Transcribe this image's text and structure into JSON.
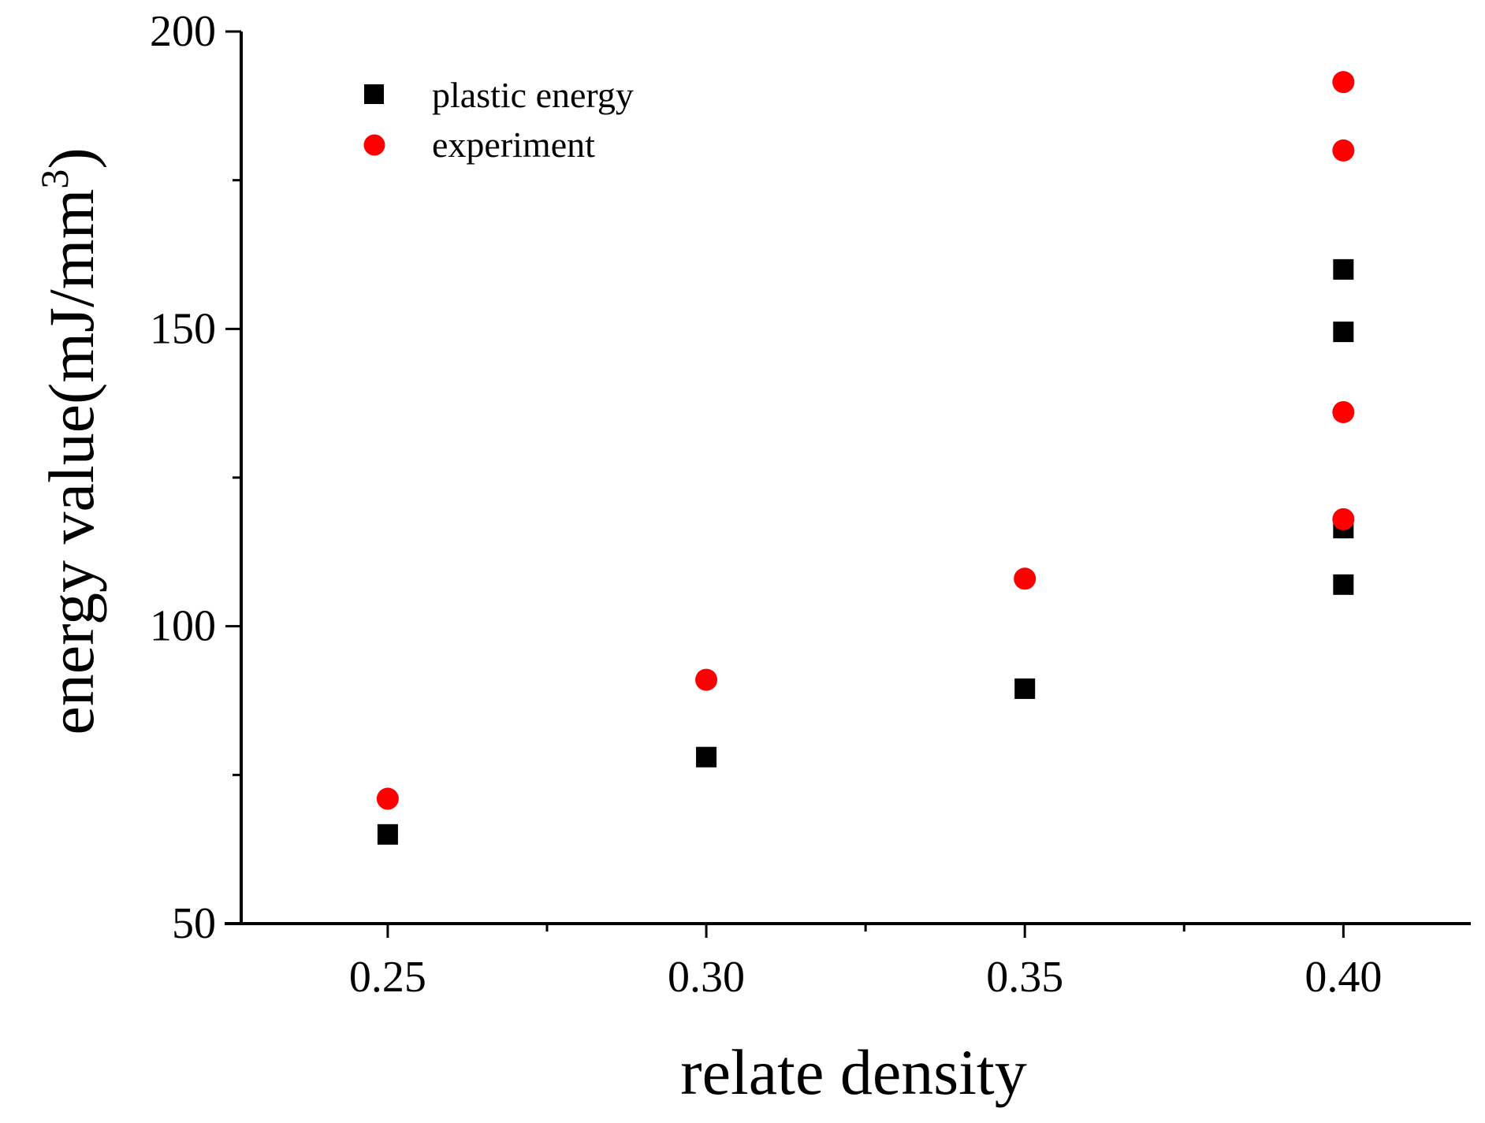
{
  "chart_data": {
    "type": "scatter",
    "title": "",
    "xlabel": "relate density",
    "ylabel": "energy value(mJ/mm",
    "ylabel_superscript": "3",
    "ylabel_close": ")",
    "xlim": [
      0.227,
      0.42
    ],
    "ylim": [
      50,
      200
    ],
    "xticks": [
      0.25,
      0.3,
      0.35,
      0.4
    ],
    "xtick_labels": [
      "0.25",
      "0.30",
      "0.35",
      "0.40"
    ],
    "xminor": [
      0.275,
      0.325,
      0.375
    ],
    "yticks": [
      50,
      100,
      150,
      200
    ],
    "ytick_labels": [
      "50",
      "100",
      "150",
      "200"
    ],
    "yminor": [
      75,
      125,
      175
    ],
    "legend_position": "top-left",
    "series": [
      {
        "name": "plastic energy",
        "marker": "square",
        "color": "#000000",
        "points": [
          {
            "x": 0.25,
            "y": 65
          },
          {
            "x": 0.3,
            "y": 78
          },
          {
            "x": 0.35,
            "y": 89.5
          },
          {
            "x": 0.4,
            "y": 107
          },
          {
            "x": 0.4,
            "y": 116.5
          },
          {
            "x": 0.4,
            "y": 149.5
          },
          {
            "x": 0.4,
            "y": 160
          }
        ]
      },
      {
        "name": "experiment",
        "marker": "circle",
        "color": "#ff0000",
        "points": [
          {
            "x": 0.25,
            "y": 71
          },
          {
            "x": 0.3,
            "y": 91
          },
          {
            "x": 0.35,
            "y": 108
          },
          {
            "x": 0.4,
            "y": 118
          },
          {
            "x": 0.4,
            "y": 136
          },
          {
            "x": 0.4,
            "y": 180
          },
          {
            "x": 0.4,
            "y": 191.5
          }
        ]
      }
    ]
  }
}
